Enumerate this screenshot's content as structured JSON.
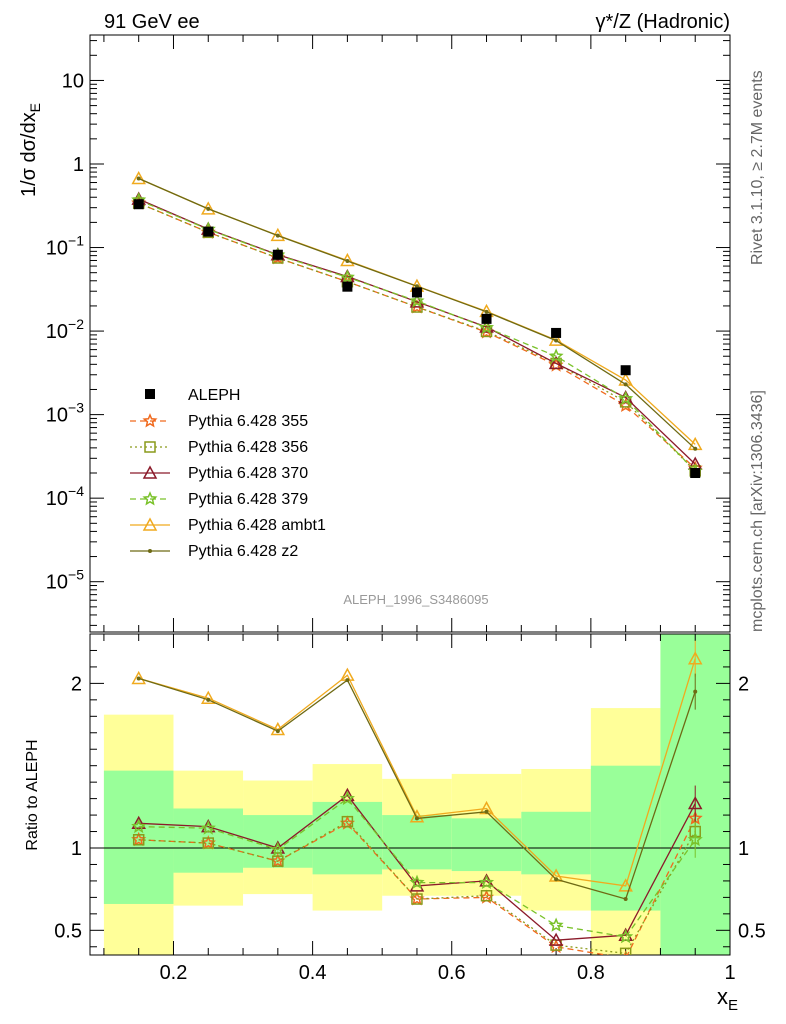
{
  "header": {
    "energy_label": "91 GeV ee",
    "process_label": "γ*/Z (Hadronic)",
    "rivet_label": "Rivet 3.1.10, ≥ 2.7M events",
    "source_label": "mcplots.cern.ch [arXiv:1306.3436]",
    "analysis_label": "ALEPH_1996_S3486095"
  },
  "chart_data": [
    {
      "type": "line",
      "name": "main",
      "ylabel": "1/σ dσ/dx_E",
      "yscale": "log",
      "ylim": [
        2.5e-06,
        35
      ],
      "xlim": [
        0.08,
        1.0
      ],
      "y_ticks": [
        {
          "v": 1e-05,
          "t": "10^-5"
        },
        {
          "v": 0.0001,
          "t": "10^-4"
        },
        {
          "v": 0.001,
          "t": "10^-3"
        },
        {
          "v": 0.01,
          "t": "10^-2"
        },
        {
          "v": 0.1,
          "t": "10^-1"
        },
        {
          "v": 1,
          "t": "1"
        },
        {
          "v": 10,
          "t": "10"
        }
      ],
      "x": [
        0.15,
        0.25,
        0.35,
        0.45,
        0.55,
        0.65,
        0.75,
        0.85,
        0.95
      ],
      "data": {
        "name": "ALEPH",
        "values": [
          0.33,
          0.155,
          0.082,
          0.034,
          0.029,
          0.014,
          0.0095,
          0.0034,
          0.0002
        ]
      },
      "series": [
        {
          "name": "Pythia 6.428 355",
          "color": "#f06a1e",
          "dash": "6,4",
          "marker": "star",
          "values": [
            0.34,
            0.152,
            0.075,
            0.039,
            0.0194,
            0.0097,
            0.0039,
            0.00128,
            0.000228
          ]
        },
        {
          "name": "Pythia 6.428 356",
          "color": "#8a9a1a",
          "dash": "2,3",
          "marker": "square",
          "values": [
            0.34,
            0.152,
            0.075,
            0.039,
            0.0194,
            0.0099,
            0.0041,
            0.00142,
            0.000212
          ]
        },
        {
          "name": "Pythia 6.428 370",
          "color": "#8b1a2a",
          "dash": "",
          "marker": "triangle",
          "values": [
            0.38,
            0.166,
            0.082,
            0.045,
            0.0224,
            0.0112,
            0.0041,
            0.0016,
            0.000256
          ]
        },
        {
          "name": "Pythia 6.428 379",
          "color": "#7ac22a",
          "dash": "6,4",
          "marker": "star",
          "values": [
            0.37,
            0.165,
            0.081,
            0.044,
            0.0229,
            0.011,
            0.005,
            0.00155,
            0.00021
          ]
        },
        {
          "name": "Pythia 6.428 ambt1",
          "color": "#f0aa1e",
          "dash": "",
          "marker": "triangle",
          "values": [
            0.67,
            0.29,
            0.14,
            0.07,
            0.0345,
            0.0172,
            0.0078,
            0.0026,
            0.00044
          ]
        },
        {
          "name": "Pythia 6.428 z2",
          "color": "#6e6a14",
          "dash": "",
          "marker": "dot",
          "values": [
            0.67,
            0.29,
            0.139,
            0.069,
            0.0344,
            0.017,
            0.0077,
            0.0023,
            0.00039
          ]
        }
      ]
    },
    {
      "type": "line",
      "name": "ratio",
      "ylabel": "Ratio to ALEPH",
      "xlabel": "x_E",
      "ylim": [
        0.35,
        2.3
      ],
      "xlim": [
        0.08,
        1.0
      ],
      "y_ticks": [
        {
          "v": 0.5,
          "t": "0.5"
        },
        {
          "v": 1,
          "t": "1"
        },
        {
          "v": 2,
          "t": "2"
        }
      ],
      "x_ticks": [
        {
          "v": 0.2,
          "t": "0.2"
        },
        {
          "v": 0.4,
          "t": "0.4"
        },
        {
          "v": 0.6,
          "t": "0.6"
        },
        {
          "v": 0.8,
          "t": "0.8"
        },
        {
          "v": 1.0,
          "t": "1"
        }
      ],
      "bands": [
        {
          "lo": 0.1,
          "hi": 0.2,
          "y1": [
            0.66,
            1.47
          ],
          "y2": [
            0.35,
            1.81
          ]
        },
        {
          "lo": 0.2,
          "hi": 0.3,
          "y1": [
            0.85,
            1.24
          ],
          "y2": [
            0.65,
            1.47
          ]
        },
        {
          "lo": 0.3,
          "hi": 0.4,
          "y1": [
            0.88,
            1.2
          ],
          "y2": [
            0.72,
            1.41
          ]
        },
        {
          "lo": 0.4,
          "hi": 0.5,
          "y1": [
            0.84,
            1.28
          ],
          "y2": [
            0.62,
            1.51
          ]
        },
        {
          "lo": 0.5,
          "hi": 0.6,
          "y1": [
            0.87,
            1.2
          ],
          "y2": [
            0.71,
            1.42
          ]
        },
        {
          "lo": 0.6,
          "hi": 0.7,
          "y1": [
            0.86,
            1.18
          ],
          "y2": [
            0.71,
            1.45
          ]
        },
        {
          "lo": 0.7,
          "hi": 0.8,
          "y1": [
            0.84,
            1.22
          ],
          "y2": [
            0.62,
            1.48
          ]
        },
        {
          "lo": 0.8,
          "hi": 0.9,
          "y1": [
            0.62,
            1.5
          ],
          "y2": [
            0.35,
            1.85
          ]
        },
        {
          "lo": 0.9,
          "hi": 1.0,
          "y1": [
            0.35,
            2.3
          ],
          "y2": [
            0.35,
            2.3
          ]
        }
      ],
      "x": [
        0.15,
        0.25,
        0.35,
        0.45,
        0.55,
        0.65,
        0.75,
        0.85,
        0.95
      ],
      "series": [
        {
          "name": "Pythia 6.428 355",
          "color": "#f06a1e",
          "dash": "6,4",
          "marker": "star",
          "values": [
            1.05,
            1.03,
            0.92,
            1.15,
            0.69,
            0.7,
            0.4,
            0.33,
            1.18
          ]
        },
        {
          "name": "Pythia 6.428 356",
          "color": "#8a9a1a",
          "dash": "2,3",
          "marker": "square",
          "values": [
            1.05,
            1.03,
            0.92,
            1.16,
            0.69,
            0.71,
            0.41,
            0.36,
            1.1
          ]
        },
        {
          "name": "Pythia 6.428 370",
          "color": "#8b1a2a",
          "dash": "",
          "marker": "triangle",
          "values": [
            1.15,
            1.13,
            1.0,
            1.32,
            0.77,
            0.8,
            0.44,
            0.47,
            1.27
          ]
        },
        {
          "name": "Pythia 6.428 379",
          "color": "#7ac22a",
          "dash": "6,4",
          "marker": "star",
          "values": [
            1.13,
            1.12,
            0.99,
            1.3,
            0.79,
            0.79,
            0.53,
            0.46,
            1.05
          ]
        },
        {
          "name": "Pythia 6.428 ambt1",
          "color": "#f0aa1e",
          "dash": "",
          "marker": "triangle",
          "values": [
            2.03,
            1.91,
            1.72,
            2.05,
            1.19,
            1.24,
            0.83,
            0.77,
            2.15
          ]
        },
        {
          "name": "Pythia 6.428 z2",
          "color": "#6e6a14",
          "dash": "",
          "marker": "dot",
          "values": [
            2.03,
            1.9,
            1.71,
            2.02,
            1.18,
            1.22,
            0.81,
            0.69,
            1.95
          ]
        }
      ]
    }
  ]
}
